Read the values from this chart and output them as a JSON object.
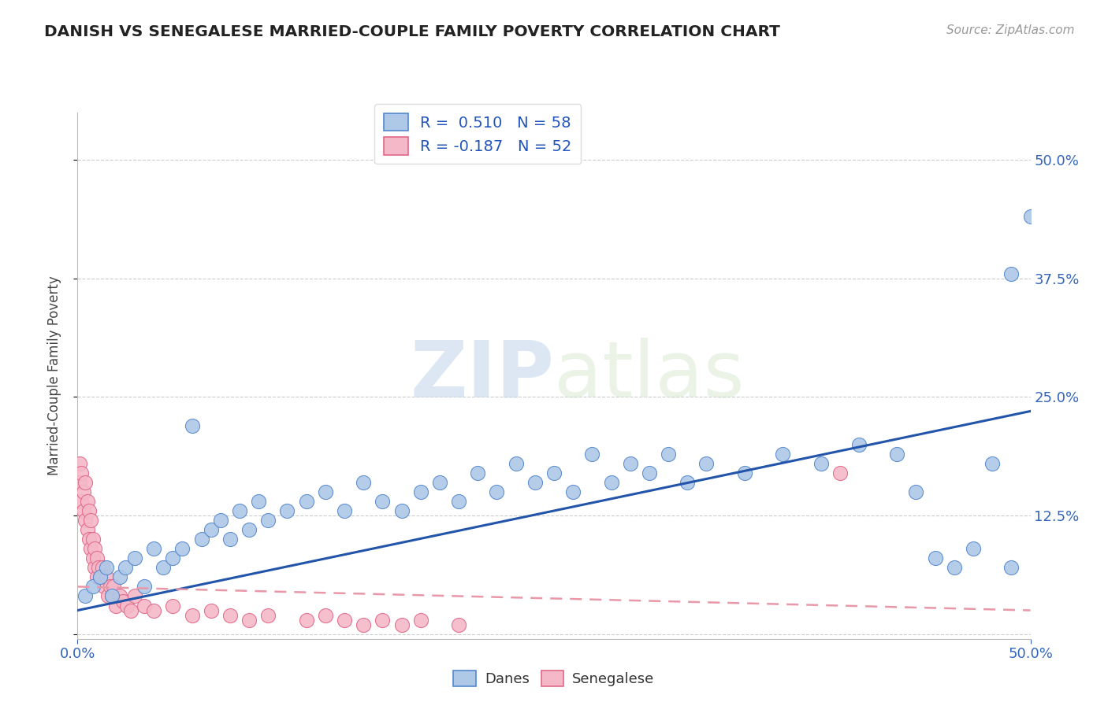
{
  "title": "DANISH VS SENEGALESE MARRIED-COUPLE FAMILY POVERTY CORRELATION CHART",
  "source": "Source: ZipAtlas.com",
  "ylabel": "Married-Couple Family Poverty",
  "ytick_values": [
    0.0,
    0.125,
    0.25,
    0.375,
    0.5
  ],
  "ytick_labels": [
    "",
    "12.5%",
    "25.0%",
    "37.5%",
    "50.0%"
  ],
  "xlim": [
    0.0,
    0.5
  ],
  "ylim": [
    -0.005,
    0.55
  ],
  "danes_color": "#aec8e8",
  "danes_edge_color": "#5588cc",
  "senegalese_color": "#f5b8c8",
  "senegalese_edge_color": "#e06888",
  "line_danes_color": "#2255aa",
  "line_senegalese_color": "#e898a8",
  "legend_danes_label_r": "R =  0.510",
  "legend_danes_label_n": "N = 58",
  "legend_sene_label_r": "R = -0.187",
  "legend_sene_label_n": "N = 52",
  "watermark_zip": "ZIP",
  "watermark_atlas": "atlas",
  "background_color": "#ffffff",
  "danes_x": [
    0.004,
    0.008,
    0.012,
    0.015,
    0.018,
    0.022,
    0.025,
    0.03,
    0.035,
    0.04,
    0.045,
    0.05,
    0.055,
    0.06,
    0.065,
    0.07,
    0.075,
    0.08,
    0.085,
    0.09,
    0.095,
    0.1,
    0.11,
    0.12,
    0.13,
    0.14,
    0.15,
    0.16,
    0.17,
    0.18,
    0.19,
    0.2,
    0.21,
    0.22,
    0.23,
    0.24,
    0.25,
    0.26,
    0.27,
    0.28,
    0.29,
    0.3,
    0.31,
    0.32,
    0.33,
    0.35,
    0.37,
    0.39,
    0.41,
    0.43,
    0.44,
    0.45,
    0.46,
    0.47,
    0.48,
    0.49,
    0.49,
    0.5
  ],
  "danes_y": [
    0.04,
    0.05,
    0.06,
    0.07,
    0.04,
    0.06,
    0.07,
    0.08,
    0.05,
    0.09,
    0.07,
    0.08,
    0.09,
    0.22,
    0.1,
    0.11,
    0.12,
    0.1,
    0.13,
    0.11,
    0.14,
    0.12,
    0.13,
    0.14,
    0.15,
    0.13,
    0.16,
    0.14,
    0.13,
    0.15,
    0.16,
    0.14,
    0.17,
    0.15,
    0.18,
    0.16,
    0.17,
    0.15,
    0.19,
    0.16,
    0.18,
    0.17,
    0.19,
    0.16,
    0.18,
    0.17,
    0.19,
    0.18,
    0.2,
    0.19,
    0.15,
    0.08,
    0.07,
    0.09,
    0.18,
    0.07,
    0.38,
    0.44
  ],
  "senegalese_x": [
    0.001,
    0.001,
    0.002,
    0.002,
    0.003,
    0.003,
    0.004,
    0.004,
    0.005,
    0.005,
    0.006,
    0.006,
    0.007,
    0.007,
    0.008,
    0.008,
    0.009,
    0.009,
    0.01,
    0.01,
    0.011,
    0.012,
    0.013,
    0.014,
    0.015,
    0.016,
    0.017,
    0.018,
    0.019,
    0.02,
    0.022,
    0.024,
    0.026,
    0.028,
    0.03,
    0.035,
    0.04,
    0.05,
    0.06,
    0.07,
    0.08,
    0.09,
    0.1,
    0.12,
    0.13,
    0.14,
    0.15,
    0.16,
    0.17,
    0.18,
    0.2,
    0.4
  ],
  "senegalese_y": [
    0.16,
    0.18,
    0.14,
    0.17,
    0.13,
    0.15,
    0.12,
    0.16,
    0.11,
    0.14,
    0.1,
    0.13,
    0.09,
    0.12,
    0.08,
    0.1,
    0.07,
    0.09,
    0.06,
    0.08,
    0.07,
    0.06,
    0.07,
    0.05,
    0.06,
    0.04,
    0.05,
    0.04,
    0.05,
    0.03,
    0.04,
    0.035,
    0.03,
    0.025,
    0.04,
    0.03,
    0.025,
    0.03,
    0.02,
    0.025,
    0.02,
    0.015,
    0.02,
    0.015,
    0.02,
    0.015,
    0.01,
    0.015,
    0.01,
    0.015,
    0.01,
    0.17
  ],
  "danes_trend_x": [
    0.0,
    0.5
  ],
  "danes_trend_y": [
    0.025,
    0.235
  ],
  "sene_trend_x": [
    0.0,
    0.5
  ],
  "sene_trend_y": [
    0.05,
    0.025
  ]
}
